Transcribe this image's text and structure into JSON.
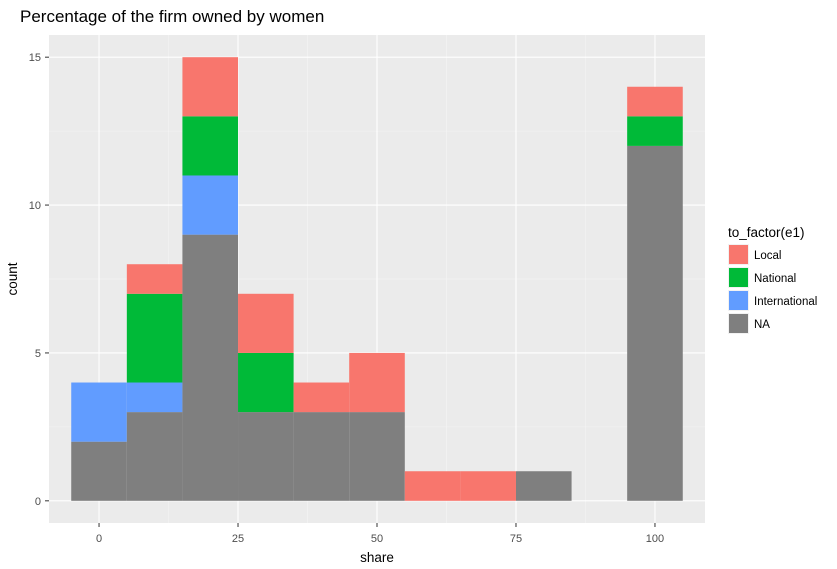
{
  "chart_data": {
    "type": "bar",
    "stacked": true,
    "title": "Percentage of the firm owned by women",
    "xlabel": "share",
    "ylabel": "count",
    "xlim": [
      -9,
      109
    ],
    "ylim": [
      -0.75,
      15.75
    ],
    "x_ticks": [
      0,
      25,
      50,
      75,
      100
    ],
    "y_ticks": [
      0,
      5,
      10,
      15
    ],
    "bin_width": 10,
    "bins": [
      0,
      10,
      20,
      30,
      40,
      50,
      60,
      70,
      80,
      90,
      100
    ],
    "grid": true,
    "background": "#ebebeb",
    "legend": {
      "title": "to_factor(e1)",
      "position": "right"
    },
    "series": [
      {
        "name": "NA",
        "color": "#7f7f7f",
        "values": [
          2,
          3,
          9,
          3,
          3,
          3,
          0,
          0,
          1,
          0,
          12
        ]
      },
      {
        "name": "International",
        "color": "#619cff",
        "values": [
          2,
          1,
          2,
          0,
          0,
          0,
          0,
          0,
          0,
          0,
          0
        ]
      },
      {
        "name": "National",
        "color": "#00ba38",
        "values": [
          0,
          3,
          2,
          2,
          0,
          0,
          0,
          0,
          0,
          0,
          1
        ]
      },
      {
        "name": "Local",
        "color": "#f8766d",
        "values": [
          0,
          1,
          2,
          2,
          1,
          2,
          1,
          1,
          0,
          0,
          1
        ]
      }
    ],
    "legend_order": [
      "Local",
      "National",
      "International",
      "NA"
    ]
  }
}
